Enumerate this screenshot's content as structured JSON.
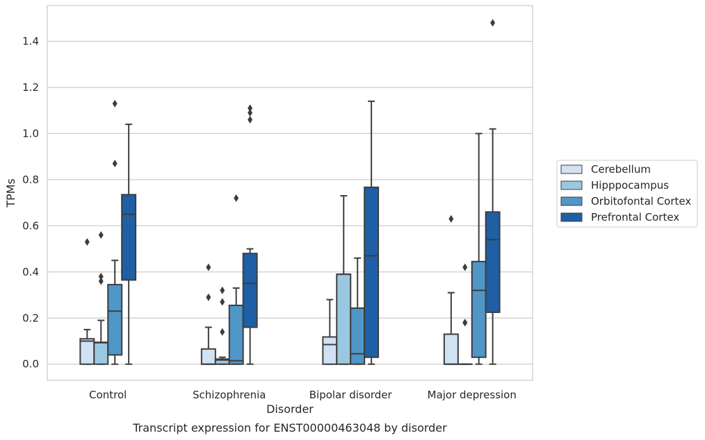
{
  "chart_data": {
    "type": "box",
    "title": "",
    "caption": "Transcript expression for ENST00000463048 by disorder",
    "xlabel": "Disorder",
    "ylabel": "TPMs",
    "ylim": [
      -0.07,
      1.555
    ],
    "yticks": [
      0.0,
      0.2,
      0.4,
      0.6,
      0.8,
      1.0,
      1.2,
      1.4
    ],
    "ytick_labels": [
      "0.0",
      "0.2",
      "0.4",
      "0.6",
      "0.8",
      "1.0",
      "1.2",
      "1.4"
    ],
    "grid": true,
    "legend_position": "right",
    "categories": [
      "Control",
      "Schizophrenia",
      "Bipolar disorder",
      "Major depression"
    ],
    "series": [
      {
        "name": "Cerebellum",
        "color": "#d1e2f3",
        "boxes": [
          {
            "category": "Control",
            "whisker_low": 0.0,
            "q1": 0.0,
            "median": 0.1,
            "q3": 0.11,
            "whisker_high": 0.15,
            "outliers": [
              0.53
            ]
          },
          {
            "category": "Schizophrenia",
            "whisker_low": 0.0,
            "q1": 0.0,
            "median": 0.0,
            "q3": 0.066,
            "whisker_high": 0.16,
            "outliers": [
              0.29,
              0.42
            ]
          },
          {
            "category": "Bipolar disorder",
            "whisker_low": 0.0,
            "q1": 0.0,
            "median": 0.085,
            "q3": 0.118,
            "whisker_high": 0.28,
            "outliers": []
          },
          {
            "category": "Major depression",
            "whisker_low": 0.0,
            "q1": 0.0,
            "median": 0.0,
            "q3": 0.13,
            "whisker_high": 0.31,
            "outliers": [
              0.63
            ]
          }
        ]
      },
      {
        "name": "Hipppocampus",
        "color": "#9ac8e0",
        "boxes": [
          {
            "category": "Control",
            "whisker_low": 0.0,
            "q1": 0.0,
            "median": 0.093,
            "q3": 0.095,
            "whisker_high": 0.19,
            "outliers": [
              0.36,
              0.38,
              0.56
            ]
          },
          {
            "category": "Schizophrenia",
            "whisker_low": 0.0,
            "q1": 0.0,
            "median": 0.018,
            "q3": 0.022,
            "whisker_high": 0.03,
            "outliers": [
              0.14,
              0.27,
              0.32
            ]
          },
          {
            "category": "Bipolar disorder",
            "whisker_low": 0.0,
            "q1": 0.0,
            "median": 0.39,
            "q3": 0.39,
            "whisker_high": 0.73,
            "outliers": []
          },
          {
            "category": "Major depression",
            "whisker_low": 0.0,
            "q1": 0.0,
            "median": 0.0,
            "q3": 0.0,
            "whisker_high": 0.0,
            "outliers": [
              0.18,
              0.18,
              0.42
            ]
          }
        ]
      },
      {
        "name": "Orbitofontal Cortex",
        "color": "#5096c6",
        "boxes": [
          {
            "category": "Control",
            "whisker_low": 0.0,
            "q1": 0.04,
            "median": 0.23,
            "q3": 0.345,
            "whisker_high": 0.45,
            "outliers": [
              0.87,
              1.13
            ]
          },
          {
            "category": "Schizophrenia",
            "whisker_low": 0.0,
            "q1": 0.0,
            "median": 0.015,
            "q3": 0.255,
            "whisker_high": 0.33,
            "outliers": [
              0.72
            ]
          },
          {
            "category": "Bipolar disorder",
            "whisker_low": 0.0,
            "q1": 0.0,
            "median": 0.045,
            "q3": 0.243,
            "whisker_high": 0.46,
            "outliers": []
          },
          {
            "category": "Major depression",
            "whisker_low": 0.0,
            "q1": 0.03,
            "median": 0.32,
            "q3": 0.445,
            "whisker_high": 1.0,
            "outliers": []
          }
        ]
      },
      {
        "name": "Prefrontal Cortex",
        "color": "#1f5fa5",
        "boxes": [
          {
            "category": "Control",
            "whisker_low": 0.0,
            "q1": 0.365,
            "median": 0.65,
            "q3": 0.735,
            "whisker_high": 1.04,
            "outliers": []
          },
          {
            "category": "Schizophrenia",
            "whisker_low": 0.0,
            "q1": 0.16,
            "median": 0.35,
            "q3": 0.48,
            "whisker_high": 0.5,
            "outliers": [
              1.06,
              1.09,
              1.11
            ]
          },
          {
            "category": "Bipolar disorder",
            "whisker_low": 0.0,
            "q1": 0.03,
            "median": 0.47,
            "q3": 0.767,
            "whisker_high": 1.14,
            "outliers": []
          },
          {
            "category": "Major depression",
            "whisker_low": 0.0,
            "q1": 0.225,
            "median": 0.54,
            "q3": 0.66,
            "whisker_high": 1.02,
            "outliers": [
              1.48
            ]
          }
        ]
      }
    ]
  }
}
